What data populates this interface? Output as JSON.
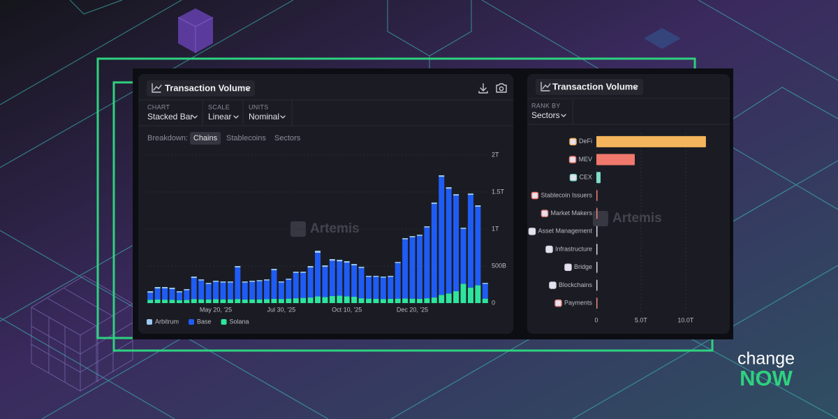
{
  "chart_data": [
    {
      "type": "bar",
      "stacked": true,
      "orientation": "vertical",
      "title": "Transaction Volume",
      "categories": [
        null,
        null,
        null,
        null,
        null,
        null,
        null,
        null,
        null,
        "May 20, '25",
        null,
        null,
        null,
        null,
        null,
        null,
        null,
        null,
        "Jul 30, '25",
        null,
        null,
        null,
        null,
        null,
        null,
        null,
        null,
        "Oct 10, '25",
        null,
        null,
        null,
        null,
        null,
        null,
        null,
        null,
        "Dec 20, '25",
        null,
        null,
        null,
        null,
        null,
        null,
        null,
        null,
        null,
        null
      ],
      "series": [
        {
          "name": "Arbitrum",
          "color": "#9ccaf2",
          "values": [
            20,
            20,
            18,
            18,
            16,
            16,
            18,
            15,
            15,
            15,
            15,
            15,
            18,
            15,
            15,
            15,
            15,
            18,
            14,
            14,
            16,
            16,
            20,
            28,
            20,
            22,
            22,
            20,
            18,
            16,
            14,
            14,
            14,
            14,
            15,
            16,
            16,
            15,
            16,
            18,
            20,
            20,
            18,
            16,
            18,
            18,
            14
          ]
        },
        {
          "name": "Base",
          "color": "#1f5cf4",
          "values": [
            95,
            149,
            153,
            144,
            104,
            131,
            285,
            255,
            210,
            235,
            227,
            227,
            427,
            229,
            237,
            245,
            253,
            386,
            223,
            256,
            343,
            338,
            405,
            589,
            409,
            477,
            463,
            456,
            425,
            409,
            294,
            296,
            289,
            296,
            481,
            799,
            829,
            851,
            956,
            1265,
            1596,
            1415,
            1293,
            742,
            1252,
            1062,
            199
          ]
        },
        {
          "name": "Solana",
          "color": "#2ee59d",
          "values": [
            45,
            48,
            46,
            45,
            40,
            42,
            55,
            50,
            48,
            52,
            50,
            50,
            55,
            48,
            50,
            50,
            52,
            58,
            55,
            60,
            65,
            70,
            75,
            90,
            80,
            95,
            100,
            90,
            85,
            65,
            60,
            58,
            55,
            58,
            60,
            62,
            60,
            58,
            65,
            75,
            110,
            130,
            160,
            260,
            210,
            240,
            60
          ]
        }
      ],
      "ylim": [
        0,
        2000
      ],
      "yticks": [
        0,
        {
          "value": 500,
          "label": "500B"
        },
        {
          "value": 1000,
          "label": "1T"
        },
        {
          "value": 1500,
          "label": "1.5T"
        },
        {
          "value": 2000,
          "label": "2T"
        }
      ],
      "grid": true,
      "legend": "bottom-left"
    },
    {
      "type": "bar",
      "orientation": "horizontal",
      "title": "Transaction Volume",
      "categories": [
        "DeFi",
        "MEV",
        "CEX",
        "Stablecoin Issuers",
        "Market Makers",
        "Asset Management",
        "Infrastructure",
        "Bridge",
        "Blockchains",
        "Payments"
      ],
      "values": [
        12.27,
        4.3,
        0.47,
        0.12,
        0.1,
        0.08,
        0.07,
        0.05,
        0.05,
        0.04
      ],
      "colors": [
        "#f5b55c",
        "#f0786c",
        "#7fdcc9",
        "#f0786c",
        "#e88a80",
        "#d8d8e0",
        "#d8d8e0",
        "#d8d8e0",
        "#d8d8e0",
        "#e88a80"
      ],
      "xlim": [
        0,
        14
      ],
      "xticks": [
        0,
        {
          "value": 5,
          "label": "5.0T"
        },
        {
          "value": 10,
          "label": "10.0T"
        }
      ],
      "grid": true
    }
  ],
  "ui": {
    "left": {
      "controls": [
        {
          "label": "CHART",
          "value": "Stacked Bar"
        },
        {
          "label": "SCALE",
          "value": "Linear"
        },
        {
          "label": "UNITS",
          "value": "Nominal"
        }
      ],
      "breakdown": "Breakdown:",
      "tabs": [
        "Chains",
        "Stablecoins",
        "Sectors"
      ]
    },
    "right": {
      "rank_label": "RANK BY",
      "rank_value": "Sectors"
    },
    "watermark": "Artemis"
  },
  "brand": {
    "top": "change",
    "bottom": "NOW"
  }
}
